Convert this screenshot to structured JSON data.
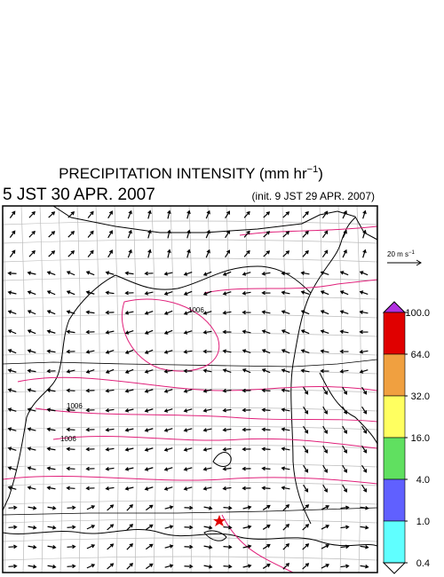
{
  "header": {
    "title": "PRECIPITATION INTENSITY (mm hr",
    "title_exponent": "−1",
    "title_close": ")",
    "valid_time": "5 JST 30 APR. 2007",
    "init_time": "(init. 9 JST 29 APR. 2007)"
  },
  "map": {
    "isobar_labels": [
      "1006",
      "1006",
      "1006"
    ]
  },
  "wind_scale": {
    "label": "20 m s",
    "exponent": "−1"
  },
  "colorbar": {
    "levels": [
      {
        "value": 100,
        "label": "100.0"
      },
      {
        "value": 64,
        "label": "64.0"
      },
      {
        "value": 32,
        "label": "32.0"
      },
      {
        "value": 16,
        "label": "16.0"
      },
      {
        "value": 4,
        "label": "4.0"
      },
      {
        "value": 1,
        "label": "1.0"
      },
      0.4
    ],
    "colors": [
      "#e00000",
      "#f0a040",
      "#ffff60",
      "#60e060",
      "#6060ff",
      "#60ffff"
    ],
    "over_color": "#b030e0",
    "under_color": "#ffffff"
  }
}
